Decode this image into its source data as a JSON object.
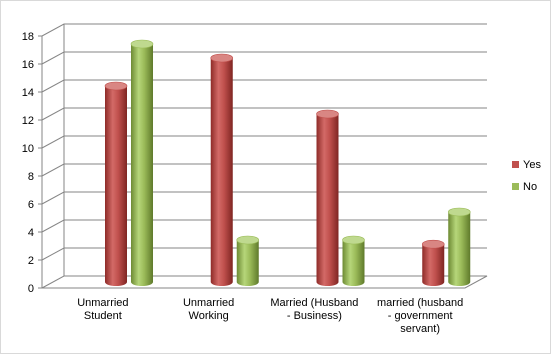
{
  "chart_data": {
    "type": "bar",
    "title": "",
    "xlabel": "",
    "ylabel": "",
    "ylim": [
      0,
      18
    ],
    "yticks": [
      0,
      2,
      4,
      6,
      8,
      10,
      12,
      14,
      16,
      18
    ],
    "grid": true,
    "legend_position": "right",
    "categories": [
      [
        "Unmarried",
        "Student"
      ],
      [
        "Unmarried",
        "Working"
      ],
      [
        "Married (Husband",
        "- Business)"
      ],
      [
        "married (husband",
        "- government",
        "servant)"
      ]
    ],
    "series": [
      {
        "name": "Yes",
        "color": "#c0504d",
        "values": [
          14,
          16,
          12,
          2.7
        ]
      },
      {
        "name": "No",
        "color": "#9bbb59",
        "values": [
          17,
          3,
          3,
          5
        ]
      }
    ]
  }
}
